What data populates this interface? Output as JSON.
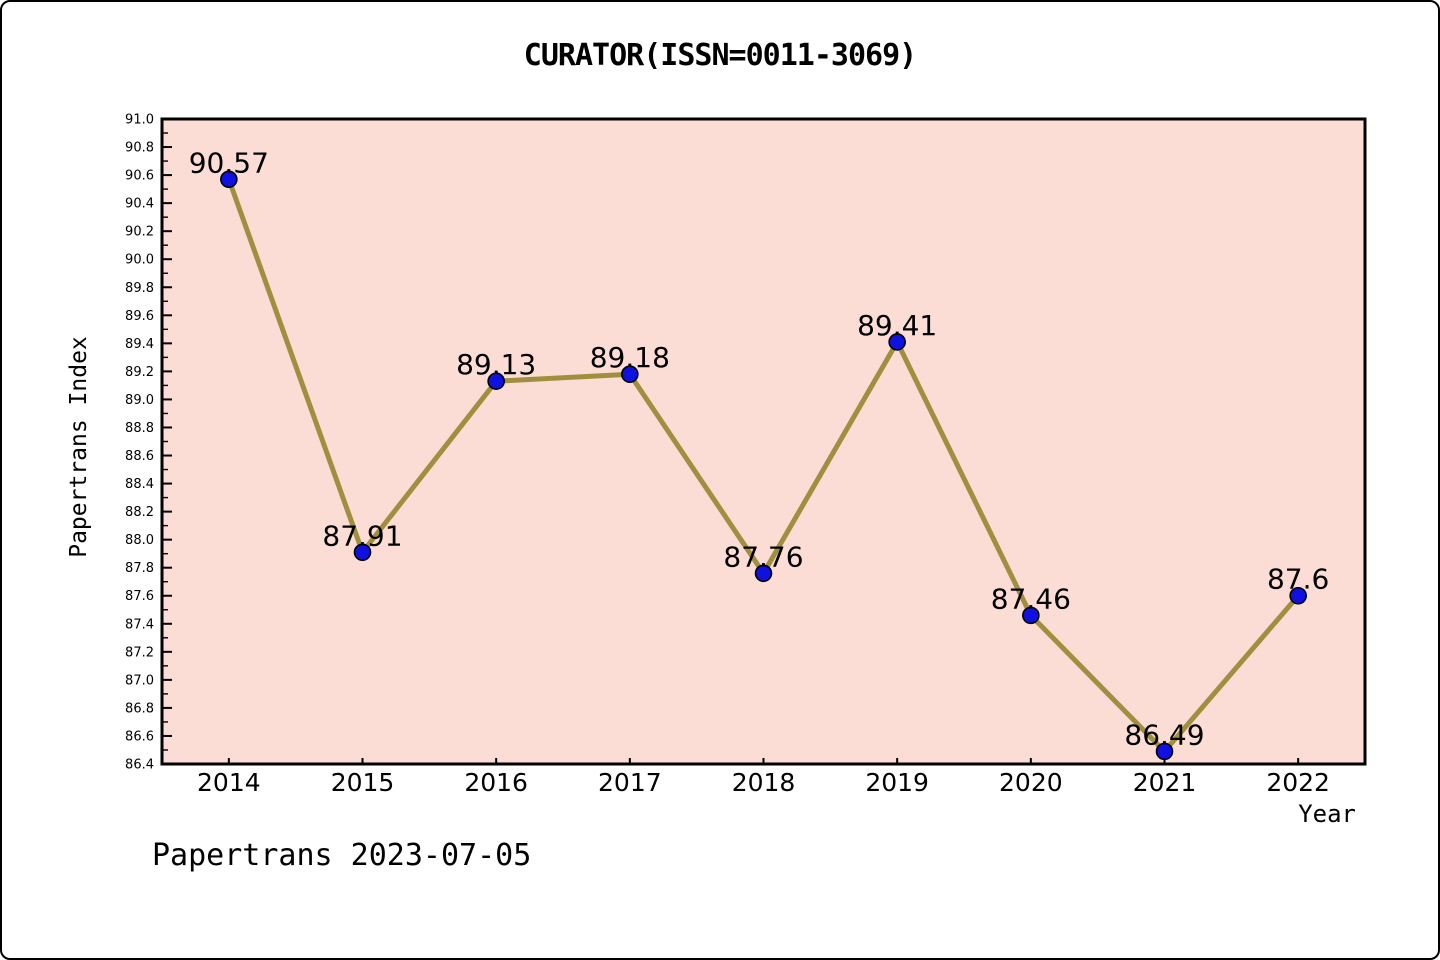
{
  "caption": "Papertrans 2023-07-05",
  "chart_data": {
    "type": "line",
    "title": "CURATOR(ISSN=0011-3069)",
    "xlabel": "Year",
    "ylabel": "Papertrans Index",
    "categories": [
      "2014",
      "2015",
      "2016",
      "2017",
      "2018",
      "2019",
      "2020",
      "2021",
      "2022"
    ],
    "values": [
      90.57,
      87.91,
      89.13,
      89.18,
      87.76,
      89.41,
      87.46,
      86.49,
      87.6
    ],
    "point_labels": [
      "90.57",
      "87.91",
      "89.13",
      "89.18",
      "87.76",
      "89.41",
      "87.46",
      "86.49",
      "87.6"
    ],
    "series_name": "Papertrans Index",
    "ylim": [
      86.4,
      91.0
    ],
    "y_major_step": 0.2,
    "y_minor_step": 0.1,
    "grid": false,
    "legend": false,
    "colors": {
      "plot_bg": "#fbddd5",
      "line": "#a08f3e",
      "marker": "#1010e0",
      "marker_edge": "#000000",
      "axis": "#000000",
      "text": "#000000"
    }
  }
}
